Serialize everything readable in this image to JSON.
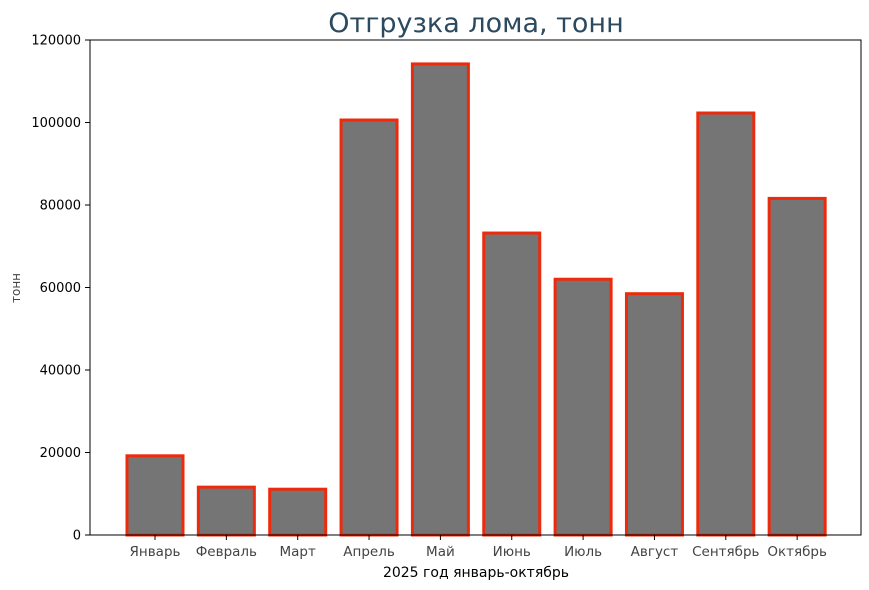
{
  "chart_data": {
    "type": "bar",
    "title": "Отгрузка лома, тонн",
    "xlabel": "2025 год январь-октябрь",
    "ylabel": "тонн",
    "categories": [
      "Январь",
      "Февраль",
      "Март",
      "Апрель",
      "Май",
      "Июнь",
      "Июль",
      "Август",
      "Сентябрь",
      "Октябрь"
    ],
    "values": [
      19200,
      11600,
      11100,
      100600,
      114200,
      73200,
      62000,
      58500,
      102300,
      81600
    ],
    "ylim": [
      0,
      120000
    ],
    "yticks": [
      "0",
      "20000",
      "40000",
      "60000",
      "80000",
      "100000",
      "120000"
    ],
    "grid": false,
    "legend": "none",
    "colors": {
      "bar_fill": "#757575",
      "bar_edge": "#ee2a0d",
      "title": "#2b4a60",
      "axis": "#000000"
    }
  }
}
